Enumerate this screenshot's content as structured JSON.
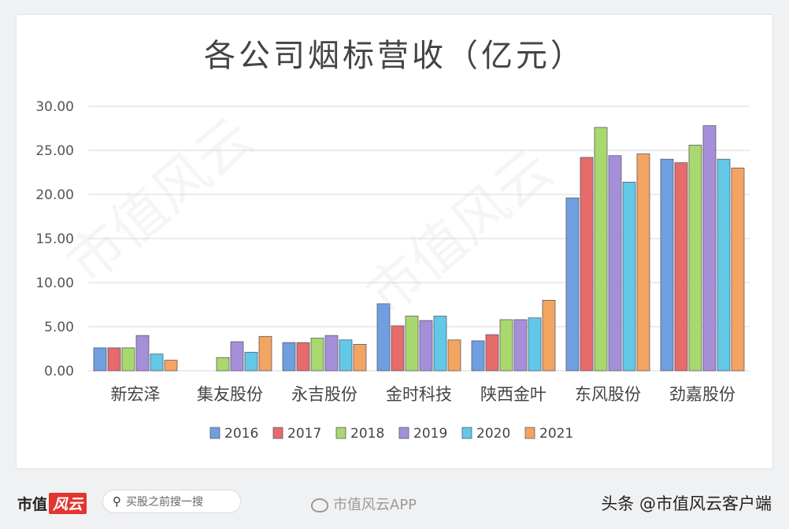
{
  "chart_data": {
    "type": "bar",
    "title": "各公司烟标营收（亿元）",
    "categories": [
      "新宏泽",
      "集友股份",
      "永吉股份",
      "金时科技",
      "陕西金叶",
      "东风股份",
      "劲嘉股份"
    ],
    "series": [
      {
        "name": "2016",
        "color": "#6f9fe0",
        "values": [
          2.6,
          0,
          3.2,
          7.6,
          3.4,
          19.6,
          24.0
        ]
      },
      {
        "name": "2017",
        "color": "#e66b6b",
        "values": [
          2.6,
          0,
          3.2,
          5.1,
          4.1,
          24.2,
          23.6
        ]
      },
      {
        "name": "2018",
        "color": "#a9d86e",
        "values": [
          2.6,
          1.5,
          3.7,
          6.2,
          5.8,
          27.6,
          25.6
        ]
      },
      {
        "name": "2019",
        "color": "#a58fd9",
        "values": [
          4.0,
          3.3,
          4.0,
          5.7,
          5.8,
          24.4,
          27.8
        ]
      },
      {
        "name": "2020",
        "color": "#62c8e8",
        "values": [
          1.9,
          2.1,
          3.5,
          6.2,
          6.0,
          21.4,
          24.0
        ]
      },
      {
        "name": "2021",
        "color": "#f4a461",
        "values": [
          1.2,
          3.9,
          3.0,
          3.5,
          8.0,
          24.6,
          23.0
        ]
      }
    ],
    "ylim": [
      0,
      30
    ],
    "yticks": [
      "0.00",
      "5.00",
      "10.00",
      "15.00",
      "20.00",
      "25.00",
      "30.00"
    ],
    "xlabel": "",
    "ylabel": "",
    "grid": true,
    "legend_position": "bottom"
  },
  "footer": {
    "brand_text": "市值",
    "brand_mark": "风云",
    "search_icon": "search-icon",
    "search_text": "买股之前搜一搜",
    "app_icon": "weibo-icon",
    "app_name": "市值风云APP",
    "source": "头条 @市值风云客户端"
  },
  "watermark_text": "市值风云"
}
